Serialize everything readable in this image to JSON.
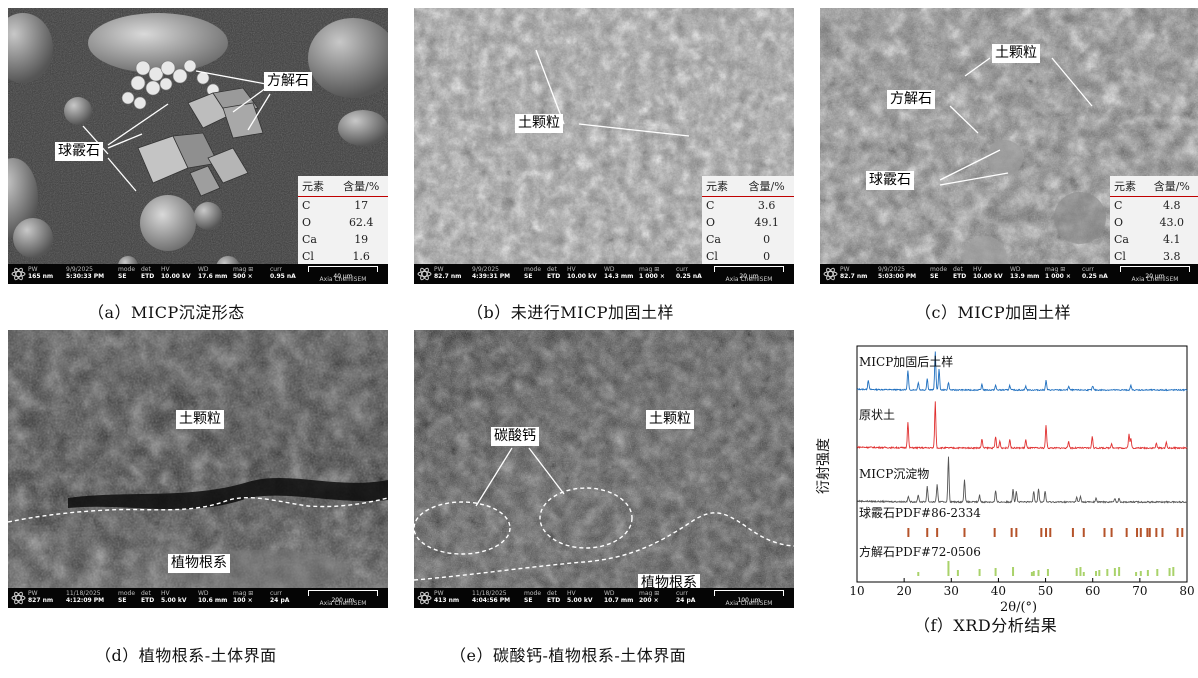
{
  "panels": {
    "a": {
      "caption": "（a）MICP沉淀形态",
      "labels": {
        "calcite": "方解石",
        "vaterite": "球霰石"
      },
      "eds": {
        "head_el": "元素",
        "head_pct": "含量/%",
        "rows": [
          [
            "C",
            "17"
          ],
          [
            "O",
            "62.4"
          ],
          [
            "Ca",
            "19"
          ],
          [
            "Cl",
            "1.6"
          ]
        ]
      },
      "meta": {
        "pw": "165 nm",
        "date": "9/9/2025",
        "time": "5:30:33 PM",
        "mode": "SE",
        "det": "ETD",
        "hv": "10.00 kV",
        "wd": "17.6 mm",
        "mag": "500 ×",
        "curr": "0.95 nA",
        "scale": "40 μm",
        "brand": "Axia ChemiSEM"
      }
    },
    "b": {
      "caption": "（b）未进行MICP加固土样",
      "labels": {
        "soil": "土颗粒"
      },
      "eds": {
        "head_el": "元素",
        "head_pct": "含量/%",
        "rows": [
          [
            "C",
            "3.6"
          ],
          [
            "O",
            "49.1"
          ],
          [
            "Ca",
            "0"
          ],
          [
            "Cl",
            "0"
          ]
        ]
      },
      "meta": {
        "pw": "82.7 nm",
        "date": "9/9/2025",
        "time": "4:39:31 PM",
        "mode": "SE",
        "det": "ETD",
        "hv": "10.00 kV",
        "wd": "14.3 mm",
        "mag": "1 000 ×",
        "curr": "0.25 nA",
        "scale": "20 μm",
        "brand": "Axia ChemiSEM"
      }
    },
    "c": {
      "caption": "（c）MICP加固土样",
      "labels": {
        "soil": "土颗粒",
        "calcite": "方解石",
        "vaterite": "球霰石"
      },
      "eds": {
        "head_el": "元素",
        "head_pct": "含量/%",
        "rows": [
          [
            "C",
            "4.8"
          ],
          [
            "O",
            "43.0"
          ],
          [
            "Ca",
            "4.1"
          ],
          [
            "Cl",
            "3.8"
          ]
        ]
      },
      "meta": {
        "pw": "82.7 nm",
        "date": "9/9/2025",
        "time": "5:03:00 PM",
        "mode": "SE",
        "det": "ETD",
        "hv": "10.00 kV",
        "wd": "13.9 mm",
        "mag": "1 000 ×",
        "curr": "0.25 nA",
        "scale": "20 μm",
        "brand": "Axia ChemiSEM"
      }
    },
    "d": {
      "caption": "（d）植物根系-土体界面",
      "labels": {
        "soil": "土颗粒",
        "root": "植物根系"
      },
      "meta": {
        "pw": "827 nm",
        "date": "11/18/2025",
        "time": "4:12:09 PM",
        "mode": "SE",
        "det": "ETD",
        "hv": "5.00 kV",
        "wd": "10.6 mm",
        "mag": "100 ×",
        "curr": "24 pA",
        "scale": "200 μm",
        "brand": "Axia ChemiSEM"
      }
    },
    "e": {
      "caption": "（e）碳酸钙-植物根系-土体界面",
      "labels": {
        "caco3": "碳酸钙",
        "soil": "土颗粒",
        "root": "植物根系"
      },
      "meta": {
        "pw": "413 nm",
        "date": "11/18/2025",
        "time": "4:04:56 PM",
        "mode": "SE",
        "det": "ETD",
        "hv": "5.00 kV",
        "wd": "10.7 mm",
        "mag": "200 ×",
        "curr": "24 pA",
        "scale": "100 μm",
        "brand": "Axia ChemiSEM"
      }
    },
    "f": {
      "caption": "（f）XRD分析结果",
      "ylabel": "衍射强度",
      "xlabel": "2θ/(°)",
      "xticks": [
        "10",
        "20",
        "30",
        "40",
        "50",
        "60",
        "70",
        "80"
      ]
    }
  },
  "meta_keys": {
    "pw": "PW",
    "mode": "mode",
    "det": "det",
    "hv": "HV",
    "wd": "WD",
    "mag": "mag ⊞",
    "curr": "curr"
  },
  "chart_data": {
    "type": "line",
    "xlabel": "2θ/(°)",
    "ylabel": "衍射强度",
    "xlim": [
      10,
      80
    ],
    "series": [
      {
        "name": "MICP加固后土样",
        "color": "#1f6fbf",
        "peaks": [
          [
            12.4,
            0.25
          ],
          [
            20.8,
            0.5
          ],
          [
            23.0,
            0.2
          ],
          [
            24.9,
            0.3
          ],
          [
            26.6,
            1.0
          ],
          [
            27.4,
            0.55
          ],
          [
            29.4,
            0.2
          ],
          [
            36.5,
            0.15
          ],
          [
            39.4,
            0.12
          ],
          [
            42.4,
            0.12
          ],
          [
            45.8,
            0.1
          ],
          [
            50.1,
            0.25
          ],
          [
            54.9,
            0.1
          ],
          [
            60.0,
            0.1
          ],
          [
            68.1,
            0.12
          ]
        ]
      },
      {
        "name": "原状土",
        "color": "#e03030",
        "peaks": [
          [
            20.8,
            0.55
          ],
          [
            26.6,
            1.0
          ],
          [
            36.5,
            0.2
          ],
          [
            39.4,
            0.25
          ],
          [
            40.3,
            0.15
          ],
          [
            42.4,
            0.2
          ],
          [
            45.8,
            0.18
          ],
          [
            50.1,
            0.5
          ],
          [
            54.9,
            0.15
          ],
          [
            59.9,
            0.25
          ],
          [
            64.0,
            0.1
          ],
          [
            67.7,
            0.3
          ],
          [
            68.1,
            0.2
          ],
          [
            73.5,
            0.1
          ],
          [
            75.6,
            0.12
          ]
        ]
      },
      {
        "name": "MICP沉淀物",
        "color": "#555555",
        "peaks": [
          [
            20.9,
            0.12
          ],
          [
            23.0,
            0.15
          ],
          [
            24.9,
            0.35
          ],
          [
            27.0,
            0.4
          ],
          [
            29.4,
            1.0
          ],
          [
            32.8,
            0.5
          ],
          [
            36.0,
            0.15
          ],
          [
            39.4,
            0.25
          ],
          [
            43.1,
            0.3
          ],
          [
            43.8,
            0.25
          ],
          [
            47.5,
            0.25
          ],
          [
            48.5,
            0.3
          ],
          [
            49.9,
            0.25
          ],
          [
            56.6,
            0.1
          ],
          [
            57.4,
            0.12
          ],
          [
            60.7,
            0.08
          ],
          [
            64.7,
            0.08
          ],
          [
            65.6,
            0.08
          ]
        ]
      },
      {
        "name": "球霰石PDF#86-2334",
        "color": "#b5532a",
        "sticks": [
          20.9,
          24.9,
          27.0,
          32.8,
          39.2,
          42.8,
          43.8,
          49.1,
          50.1,
          51.0,
          55.8,
          58.1,
          62.5,
          64.0,
          67.2,
          69.4,
          70.2,
          71.6,
          72.1,
          73.5,
          74.8,
          78.0,
          79.0
        ]
      },
      {
        "name": "方解石PDF#72-0506",
        "color": "#a9d26a",
        "sticks": [
          23.0,
          29.4,
          31.4,
          36.0,
          39.4,
          43.1,
          47.1,
          47.5,
          48.5,
          50.5,
          56.6,
          57.4,
          58.1,
          60.7,
          61.4,
          63.1,
          64.7,
          65.6,
          69.2,
          70.2,
          71.7,
          73.7,
          76.3,
          77.1
        ]
      }
    ]
  }
}
